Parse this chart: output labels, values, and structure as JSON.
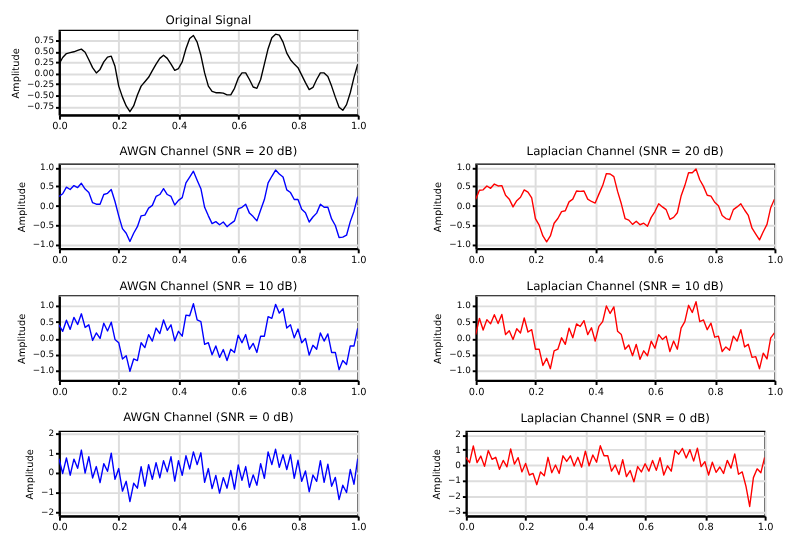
{
  "chart_data": [
    {
      "type": "line",
      "title": "Original Signal",
      "ylabel": "Amplitude",
      "grid": true,
      "x": [
        0,
        0.0125,
        0.025,
        0.0375,
        0.05,
        0.0625,
        0.075,
        0.0875,
        0.1,
        0.1125,
        0.125,
        0.1375,
        0.15,
        0.1625,
        0.175,
        0.1875,
        0.2,
        0.2125,
        0.225,
        0.2375,
        0.25,
        0.2625,
        0.275,
        0.2875,
        0.3,
        0.3125,
        0.325,
        0.3375,
        0.35,
        0.3625,
        0.375,
        0.3875,
        0.4,
        0.4125,
        0.425,
        0.4375,
        0.45,
        0.4625,
        0.475,
        0.4875,
        0.5,
        0.5125,
        0.525,
        0.5375,
        0.55,
        0.5625,
        0.575,
        0.5875,
        0.6,
        0.6125,
        0.625,
        0.6375,
        0.65,
        0.6625,
        0.675,
        0.6875,
        0.7,
        0.7125,
        0.725,
        0.7375,
        0.75,
        0.7625,
        0.775,
        0.7875,
        0.8,
        0.8125,
        0.825,
        0.8375,
        0.85,
        0.8625,
        0.875,
        0.8875,
        0.9,
        0.9125,
        0.925,
        0.9375,
        0.95,
        0.9625,
        0.975,
        0.9875,
        1.0
      ],
      "series": [
        {
          "color": "#000000",
          "values": [
            0.2,
            0.35,
            0.44,
            0.46,
            0.48,
            0.51,
            0.54,
            0.47,
            0.3,
            0.12,
            0.0,
            0.08,
            0.25,
            0.36,
            0.38,
            0.15,
            -0.3,
            -0.55,
            -0.75,
            -0.88,
            -0.75,
            -0.5,
            -0.3,
            -0.2,
            -0.1,
            0.05,
            0.2,
            0.33,
            0.4,
            0.33,
            0.2,
            0.06,
            0.1,
            0.25,
            0.55,
            0.78,
            0.85,
            0.7,
            0.4,
            0.0,
            -0.3,
            -0.42,
            -0.45,
            -0.45,
            -0.46,
            -0.5,
            -0.5,
            -0.35,
            -0.12,
            0.0,
            0.0,
            -0.15,
            -0.32,
            -0.35,
            -0.15,
            0.2,
            0.55,
            0.8,
            0.88,
            0.86,
            0.7,
            0.45,
            0.3,
            0.2,
            0.12,
            -0.05,
            -0.22,
            -0.38,
            -0.33,
            -0.15,
            0.0,
            0.0,
            -0.08,
            -0.3,
            -0.55,
            -0.78,
            -0.85,
            -0.72,
            -0.45,
            -0.1,
            0.2
          ]
        }
      ],
      "xlim": [
        0,
        1
      ],
      "xticks": [
        {
          "value": 0,
          "label": "0.0"
        },
        {
          "value": 0.2,
          "label": "0.2"
        },
        {
          "value": 0.4,
          "label": "0.4"
        },
        {
          "value": 0.6,
          "label": "0.6"
        },
        {
          "value": 0.8,
          "label": "0.8"
        },
        {
          "value": 1,
          "label": "1.0"
        }
      ],
      "ylim": [
        -0.95,
        0.97
      ],
      "yticks": [
        {
          "value": -0.75,
          "label": "−0.75"
        },
        {
          "value": -0.5,
          "label": "−0.50"
        },
        {
          "value": -0.25,
          "label": "−0.25"
        },
        {
          "value": 0,
          "label": "0.00"
        },
        {
          "value": 0.25,
          "label": "0.25"
        },
        {
          "value": 0.5,
          "label": "0.50"
        },
        {
          "value": 0.75,
          "label": "0.75"
        }
      ]
    },
    {
      "type": "line",
      "title": "AWGN Channel (SNR = 20 dB)",
      "ylabel": "Amplitude",
      "grid": true,
      "x": [
        0,
        0.0125,
        0.025,
        0.0375,
        0.05,
        0.0625,
        0.075,
        0.0875,
        0.1,
        0.1125,
        0.125,
        0.1375,
        0.15,
        0.1625,
        0.175,
        0.1875,
        0.2,
        0.2125,
        0.225,
        0.2375,
        0.25,
        0.2625,
        0.275,
        0.2875,
        0.3,
        0.3125,
        0.325,
        0.3375,
        0.35,
        0.3625,
        0.375,
        0.3875,
        0.4,
        0.4125,
        0.425,
        0.4375,
        0.45,
        0.4625,
        0.475,
        0.4875,
        0.5,
        0.5125,
        0.525,
        0.5375,
        0.55,
        0.5625,
        0.575,
        0.5875,
        0.6,
        0.6125,
        0.625,
        0.6375,
        0.65,
        0.6625,
        0.675,
        0.6875,
        0.7,
        0.7125,
        0.725,
        0.7375,
        0.75,
        0.7625,
        0.775,
        0.7875,
        0.8,
        0.8125,
        0.825,
        0.8375,
        0.85,
        0.8625,
        0.875,
        0.8875,
        0.9,
        0.9125,
        0.925,
        0.9375,
        0.95,
        0.9625,
        0.975,
        0.9875,
        1.0
      ],
      "series": [
        {
          "color": "#0000ff",
          "values": [
            0.24,
            0.31,
            0.48,
            0.42,
            0.52,
            0.47,
            0.58,
            0.43,
            0.34,
            0.08,
            0.04,
            0.04,
            0.29,
            0.32,
            0.42,
            0.11,
            -0.26,
            -0.59,
            -0.71,
            -0.92,
            -0.71,
            -0.54,
            -0.26,
            -0.24,
            -0.06,
            0.01,
            0.24,
            0.29,
            0.44,
            0.29,
            0.24,
            0.02,
            0.14,
            0.21,
            0.59,
            0.74,
            0.89,
            0.66,
            0.44,
            -0.04,
            -0.26,
            -0.46,
            -0.41,
            -0.49,
            -0.42,
            -0.54,
            -0.46,
            -0.39,
            -0.08,
            -0.04,
            0.04,
            -0.19,
            -0.28,
            -0.39,
            -0.11,
            0.16,
            0.59,
            0.76,
            0.92,
            0.82,
            0.74,
            0.41,
            0.34,
            0.16,
            0.16,
            -0.09,
            -0.18,
            -0.42,
            -0.29,
            -0.19,
            0.04,
            -0.04,
            -0.04,
            -0.34,
            -0.51,
            -0.82,
            -0.81,
            -0.76,
            -0.41,
            -0.14,
            0.24
          ]
        }
      ],
      "xlim": [
        0,
        1
      ],
      "xticks": [
        {
          "value": 0,
          "label": "0.0"
        },
        {
          "value": 0.2,
          "label": "0.2"
        },
        {
          "value": 0.4,
          "label": "0.4"
        },
        {
          "value": 0.6,
          "label": "0.6"
        },
        {
          "value": 0.8,
          "label": "0.8"
        },
        {
          "value": 1,
          "label": "1.0"
        }
      ],
      "ylim": [
        -1.1,
        1.08
      ],
      "yticks": [
        {
          "value": -1,
          "label": "−1.0"
        },
        {
          "value": -0.5,
          "label": "−0.5"
        },
        {
          "value": 0,
          "label": "0.0"
        },
        {
          "value": 0.5,
          "label": "0.5"
        },
        {
          "value": 1,
          "label": "1.0"
        }
      ]
    },
    {
      "type": "line",
      "title": "Laplacian Channel (SNR = 20 dB)",
      "ylabel": "Amplitude",
      "grid": true,
      "x": [
        0,
        0.0125,
        0.025,
        0.0375,
        0.05,
        0.0625,
        0.075,
        0.0875,
        0.1,
        0.1125,
        0.125,
        0.1375,
        0.15,
        0.1625,
        0.175,
        0.1875,
        0.2,
        0.2125,
        0.225,
        0.2375,
        0.25,
        0.2625,
        0.275,
        0.2875,
        0.3,
        0.3125,
        0.325,
        0.3375,
        0.35,
        0.3625,
        0.375,
        0.3875,
        0.4,
        0.4125,
        0.425,
        0.4375,
        0.45,
        0.4625,
        0.475,
        0.4875,
        0.5,
        0.5125,
        0.525,
        0.5375,
        0.55,
        0.5625,
        0.575,
        0.5875,
        0.6,
        0.6125,
        0.625,
        0.6375,
        0.65,
        0.6625,
        0.675,
        0.6875,
        0.7,
        0.7125,
        0.725,
        0.7375,
        0.75,
        0.7625,
        0.775,
        0.7875,
        0.8,
        0.8125,
        0.825,
        0.8375,
        0.85,
        0.8625,
        0.875,
        0.8875,
        0.9,
        0.9125,
        0.925,
        0.9375,
        0.95,
        0.9625,
        0.975,
        0.9875,
        1.0
      ],
      "series": [
        {
          "color": "#ff0000",
          "values": [
            0.17,
            0.4,
            0.41,
            0.51,
            0.45,
            0.56,
            0.51,
            0.52,
            0.27,
            0.17,
            -0.03,
            0.13,
            0.22,
            0.41,
            0.35,
            0.2,
            -0.33,
            -0.5,
            -0.78,
            -0.93,
            -0.78,
            -0.45,
            -0.33,
            -0.15,
            -0.13,
            0.1,
            0.17,
            0.38,
            0.37,
            0.38,
            0.17,
            0.11,
            0.07,
            0.3,
            0.52,
            0.83,
            0.82,
            0.75,
            0.37,
            0.05,
            -0.33,
            -0.37,
            -0.48,
            -0.4,
            -0.49,
            -0.45,
            -0.53,
            -0.3,
            -0.15,
            0.05,
            -0.03,
            -0.1,
            -0.35,
            -0.3,
            -0.18,
            0.25,
            0.52,
            0.85,
            0.85,
            0.95,
            0.67,
            0.5,
            0.27,
            0.25,
            0.09,
            0.0,
            -0.25,
            -0.33,
            -0.36,
            -0.1,
            -0.03,
            0.05,
            -0.11,
            -0.25,
            -0.58,
            -0.73,
            -0.88,
            -0.67,
            -0.48,
            -0.05,
            0.17
          ]
        }
      ],
      "xlim": [
        0,
        1
      ],
      "xticks": [
        {
          "value": 0,
          "label": "0.0"
        },
        {
          "value": 0.2,
          "label": "0.2"
        },
        {
          "value": 0.4,
          "label": "0.4"
        },
        {
          "value": 0.6,
          "label": "0.6"
        },
        {
          "value": 0.8,
          "label": "0.8"
        },
        {
          "value": 1,
          "label": "1.0"
        }
      ],
      "ylim": [
        -1.1,
        1.08
      ],
      "yticks": [
        {
          "value": -1,
          "label": "−1.0"
        },
        {
          "value": -0.5,
          "label": "−0.5"
        },
        {
          "value": 0,
          "label": "0.0"
        },
        {
          "value": 0.5,
          "label": "0.5"
        },
        {
          "value": 1,
          "label": "1.0"
        }
      ]
    },
    {
      "type": "line",
      "title": "AWGN Channel (SNR = 10 dB)",
      "ylabel": "Amplitude",
      "grid": true,
      "x": [
        0,
        0.0125,
        0.025,
        0.0375,
        0.05,
        0.0625,
        0.075,
        0.0875,
        0.1,
        0.1125,
        0.125,
        0.1375,
        0.15,
        0.1625,
        0.175,
        0.1875,
        0.2,
        0.2125,
        0.225,
        0.2375,
        0.25,
        0.2625,
        0.275,
        0.2875,
        0.3,
        0.3125,
        0.325,
        0.3375,
        0.35,
        0.3625,
        0.375,
        0.3875,
        0.4,
        0.4125,
        0.425,
        0.4375,
        0.45,
        0.4625,
        0.475,
        0.4875,
        0.5,
        0.5125,
        0.525,
        0.5375,
        0.55,
        0.5625,
        0.575,
        0.5875,
        0.6,
        0.6125,
        0.625,
        0.6375,
        0.65,
        0.6625,
        0.675,
        0.6875,
        0.7,
        0.7125,
        0.725,
        0.7375,
        0.75,
        0.7625,
        0.775,
        0.7875,
        0.8,
        0.8125,
        0.825,
        0.8375,
        0.85,
        0.8625,
        0.875,
        0.8875,
        0.9,
        0.9125,
        0.925,
        0.9375,
        0.95,
        0.9625,
        0.975,
        0.9875,
        1.0
      ],
      "series": [
        {
          "color": "#0000ff",
          "values": [
            0.4,
            0.2,
            0.54,
            0.26,
            0.63,
            0.41,
            0.74,
            0.32,
            0.4,
            -0.08,
            0.15,
            -0.02,
            0.45,
            0.21,
            0.48,
            -0.05,
            -0.15,
            -0.65,
            -0.55,
            -1.03,
            -0.65,
            -0.7,
            -0.15,
            -0.3,
            0.1,
            -0.1,
            0.3,
            0.13,
            0.55,
            0.23,
            0.4,
            -0.09,
            0.2,
            0.05,
            0.7,
            0.68,
            1.05,
            0.55,
            0.5,
            -0.2,
            -0.15,
            -0.52,
            -0.25,
            -0.6,
            -0.36,
            -0.7,
            -0.35,
            -0.45,
            0.08,
            -0.15,
            0.1,
            -0.35,
            -0.17,
            -0.45,
            0.05,
            0.05,
            0.65,
            0.6,
            1.03,
            0.76,
            0.9,
            0.3,
            0.4,
            0.0,
            0.27,
            -0.15,
            -0.02,
            -0.53,
            -0.23,
            -0.35,
            0.15,
            -0.1,
            0.12,
            -0.45,
            -0.45,
            -0.98,
            -0.7,
            -0.82,
            -0.25,
            -0.25,
            0.3
          ]
        }
      ],
      "xlim": [
        0,
        1
      ],
      "xticks": [
        {
          "value": 0,
          "label": "0.0"
        },
        {
          "value": 0.2,
          "label": "0.2"
        },
        {
          "value": 0.4,
          "label": "0.4"
        },
        {
          "value": 0.6,
          "label": "0.6"
        },
        {
          "value": 0.8,
          "label": "0.8"
        },
        {
          "value": 1,
          "label": "1.0"
        }
      ],
      "ylim": [
        -1.3,
        1.3
      ],
      "yticks": [
        {
          "value": -1,
          "label": "−1.0"
        },
        {
          "value": -0.5,
          "label": "−0.5"
        },
        {
          "value": 0,
          "label": "0.0"
        },
        {
          "value": 0.5,
          "label": "0.5"
        },
        {
          "value": 1,
          "label": "1.0"
        }
      ]
    },
    {
      "type": "line",
      "title": "Laplacian Channel (SNR = 10 dB)",
      "ylabel": "Amplitude",
      "grid": true,
      "x": [
        0,
        0.0125,
        0.025,
        0.0375,
        0.05,
        0.0625,
        0.075,
        0.0875,
        0.1,
        0.1125,
        0.125,
        0.1375,
        0.15,
        0.1625,
        0.175,
        0.1875,
        0.2,
        0.2125,
        0.225,
        0.2375,
        0.25,
        0.2625,
        0.275,
        0.2875,
        0.3,
        0.3125,
        0.325,
        0.3375,
        0.35,
        0.3625,
        0.375,
        0.3875,
        0.4,
        0.4125,
        0.425,
        0.4375,
        0.45,
        0.4625,
        0.475,
        0.4875,
        0.5,
        0.5125,
        0.525,
        0.5375,
        0.55,
        0.5625,
        0.575,
        0.5875,
        0.6,
        0.6125,
        0.625,
        0.6375,
        0.65,
        0.6625,
        0.675,
        0.6875,
        0.7,
        0.7125,
        0.725,
        0.7375,
        0.75,
        0.7625,
        0.775,
        0.7875,
        0.8,
        0.8125,
        0.825,
        0.8375,
        0.85,
        0.8625,
        0.875,
        0.8875,
        0.9,
        0.9125,
        0.925,
        0.9375,
        0.95,
        0.9625,
        0.975,
        0.9875,
        1.0
      ],
      "series": [
        {
          "color": "#ff0000",
          "values": [
            0.1,
            0.6,
            0.24,
            0.56,
            0.43,
            0.71,
            0.44,
            0.72,
            0.1,
            0.22,
            -0.05,
            0.28,
            0.15,
            0.61,
            0.18,
            0.25,
            -0.35,
            -0.35,
            -0.85,
            -0.63,
            -0.95,
            -0.4,
            -0.35,
            0.0,
            -0.2,
            0.3,
            0.0,
            0.43,
            0.35,
            0.53,
            0.1,
            0.31,
            -0.1,
            0.35,
            0.5,
            0.98,
            0.75,
            0.95,
            0.2,
            0.1,
            -0.35,
            -0.22,
            -0.55,
            -0.2,
            -0.66,
            -0.4,
            -0.55,
            -0.1,
            -0.32,
            0.1,
            -0.05,
            0.05,
            -0.42,
            -0.1,
            -0.35,
            0.3,
            0.5,
            1.0,
            0.78,
            1.11,
            0.5,
            0.55,
            0.25,
            0.45,
            0.02,
            0.05,
            -0.42,
            -0.28,
            -0.38,
            0.05,
            -0.1,
            0.25,
            -0.28,
            -0.2,
            -0.6,
            -0.58,
            -0.95,
            -0.47,
            -0.65,
            0.0,
            0.15
          ]
        }
      ],
      "xlim": [
        0,
        1
      ],
      "xticks": [
        {
          "value": 0,
          "label": "0.0"
        },
        {
          "value": 0.2,
          "label": "0.2"
        },
        {
          "value": 0.4,
          "label": "0.4"
        },
        {
          "value": 0.6,
          "label": "0.6"
        },
        {
          "value": 0.8,
          "label": "0.8"
        },
        {
          "value": 1,
          "label": "1.0"
        }
      ],
      "ylim": [
        -1.3,
        1.3
      ],
      "yticks": [
        {
          "value": -1,
          "label": "−1.0"
        },
        {
          "value": -0.5,
          "label": "−0.5"
        },
        {
          "value": 0,
          "label": "0.0"
        },
        {
          "value": 0.5,
          "label": "0.5"
        },
        {
          "value": 1,
          "label": "1.0"
        }
      ]
    },
    {
      "type": "line",
      "title": "AWGN Channel (SNR = 0 dB)",
      "ylabel": "Amplitude",
      "grid": true,
      "x": [
        0,
        0.0125,
        0.025,
        0.0375,
        0.05,
        0.0625,
        0.075,
        0.0875,
        0.1,
        0.1125,
        0.125,
        0.1375,
        0.15,
        0.1625,
        0.175,
        0.1875,
        0.2,
        0.2125,
        0.225,
        0.2375,
        0.25,
        0.2625,
        0.275,
        0.2875,
        0.3,
        0.3125,
        0.325,
        0.3375,
        0.35,
        0.3625,
        0.375,
        0.3875,
        0.4,
        0.4125,
        0.425,
        0.4375,
        0.45,
        0.4625,
        0.475,
        0.4875,
        0.5,
        0.5125,
        0.525,
        0.5375,
        0.55,
        0.5625,
        0.575,
        0.5875,
        0.6,
        0.6125,
        0.625,
        0.6375,
        0.65,
        0.6625,
        0.675,
        0.6875,
        0.7,
        0.7125,
        0.725,
        0.7375,
        0.75,
        0.7625,
        0.775,
        0.7875,
        0.8,
        0.8125,
        0.825,
        0.8375,
        0.85,
        0.8625,
        0.875,
        0.8875,
        0.9,
        0.9125,
        0.925,
        0.9375,
        0.95,
        0.9625,
        0.975,
        0.9875,
        1.0
      ],
      "series": [
        {
          "color": "#0000ff",
          "values": [
            0.7,
            -0.05,
            0.74,
            -0.14,
            0.68,
            0.21,
            1.14,
            -0.03,
            0.8,
            -0.28,
            0.3,
            -0.52,
            0.45,
            0.06,
            0.98,
            -0.35,
            0.2,
            -0.95,
            -0.45,
            -1.48,
            -0.55,
            -0.8,
            0.3,
            -0.7,
            0.4,
            -0.35,
            0.5,
            -0.27,
            0.6,
            0.03,
            0.8,
            -0.44,
            0.6,
            -0.15,
            0.85,
            0.18,
            1.05,
            0.4,
            1.0,
            -0.5,
            0.2,
            -0.82,
            -0.15,
            -1.05,
            -0.26,
            -0.8,
            0.1,
            -0.85,
            0.38,
            -0.4,
            0.3,
            -0.75,
            -0.12,
            -0.65,
            0.45,
            -0.3,
            1.05,
            0.4,
            1.18,
            0.26,
            0.9,
            0.15,
            0.9,
            -0.3,
            0.62,
            -0.45,
            0.08,
            -0.98,
            -0.13,
            -0.45,
            0.6,
            -0.5,
            0.42,
            -0.7,
            -0.25,
            -1.38,
            -0.65,
            -1.02,
            0.15,
            -0.6,
            0.7
          ]
        }
      ],
      "xlim": [
        0,
        1
      ],
      "xticks": [
        {
          "value": 0,
          "label": "0.0"
        },
        {
          "value": 0.2,
          "label": "0.2"
        },
        {
          "value": 0.4,
          "label": "0.4"
        },
        {
          "value": 0.6,
          "label": "0.6"
        },
        {
          "value": 0.8,
          "label": "0.8"
        },
        {
          "value": 1,
          "label": "1.0"
        }
      ],
      "ylim": [
        -2.2,
        2.1
      ],
      "yticks": [
        {
          "value": -2,
          "label": "−2"
        },
        {
          "value": -1,
          "label": "−1"
        },
        0,
        1,
        2
      ]
    },
    {
      "type": "line",
      "title": "Laplacian Channel (SNR = 0 dB)",
      "ylabel": "Amplitude",
      "grid": true,
      "x": [
        0,
        0.0125,
        0.025,
        0.0375,
        0.05,
        0.0625,
        0.075,
        0.0875,
        0.1,
        0.1125,
        0.125,
        0.1375,
        0.15,
        0.1625,
        0.175,
        0.1875,
        0.2,
        0.2125,
        0.225,
        0.2375,
        0.25,
        0.2625,
        0.275,
        0.2875,
        0.3,
        0.3125,
        0.325,
        0.3375,
        0.35,
        0.3625,
        0.375,
        0.3875,
        0.4,
        0.4125,
        0.425,
        0.4375,
        0.45,
        0.4625,
        0.475,
        0.4875,
        0.5,
        0.5125,
        0.525,
        0.5375,
        0.55,
        0.5625,
        0.575,
        0.5875,
        0.6,
        0.6125,
        0.625,
        0.6375,
        0.65,
        0.6625,
        0.675,
        0.6875,
        0.7,
        0.7125,
        0.725,
        0.7375,
        0.75,
        0.7625,
        0.775,
        0.7875,
        0.8,
        0.8125,
        0.825,
        0.8375,
        0.85,
        0.8625,
        0.875,
        0.8875,
        0.9,
        0.9125,
        0.925,
        0.9375,
        0.95,
        0.9625,
        0.975,
        0.9875,
        1.0
      ],
      "series": [
        {
          "color": "#ff0000",
          "values": [
            0.5,
            0.15,
            1.24,
            0.16,
            0.58,
            -0.09,
            0.94,
            0.37,
            0.5,
            -0.28,
            0.3,
            -0.12,
            1.05,
            0.06,
            0.48,
            -0.45,
            0.1,
            -0.65,
            -0.55,
            -1.28,
            -0.45,
            -0.7,
            0.5,
            -0.5,
            0.0,
            -0.55,
            0.6,
            0.23,
            0.6,
            -0.07,
            0.5,
            -0.14,
            0.9,
            -0.05,
            0.65,
            0.18,
            1.25,
            0.6,
            0.6,
            -0.4,
            0.0,
            -0.62,
            0.35,
            -0.75,
            -0.36,
            -1.1,
            -0.1,
            -0.45,
            0.08,
            -0.4,
            0.3,
            -0.35,
            0.48,
            -0.65,
            -0.05,
            -0.4,
            0.95,
            0.7,
            1.08,
            0.46,
            1.0,
            0.25,
            1.1,
            -0.1,
            0.22,
            -0.65,
            0.18,
            -0.48,
            -0.13,
            -0.55,
            0.3,
            -0.2,
            0.72,
            -0.6,
            -0.45,
            -1.38,
            -2.7,
            -0.82,
            -0.25,
            -0.5,
            0.5
          ]
        }
      ],
      "xlim": [
        0,
        1
      ],
      "xticks": [
        {
          "value": 0,
          "label": "0.0"
        },
        {
          "value": 0.2,
          "label": "0.2"
        },
        {
          "value": 0.4,
          "label": "0.4"
        },
        {
          "value": 0.6,
          "label": "0.6"
        },
        {
          "value": 0.8,
          "label": "0.8"
        },
        {
          "value": 1,
          "label": "1.0"
        }
      ],
      "ylim": [
        -3.3,
        2.2
      ],
      "yticks": [
        {
          "value": -3,
          "label": "−3"
        },
        {
          "value": -2,
          "label": "−2"
        },
        {
          "value": -1,
          "label": "−1"
        },
        0,
        1,
        2
      ]
    }
  ]
}
